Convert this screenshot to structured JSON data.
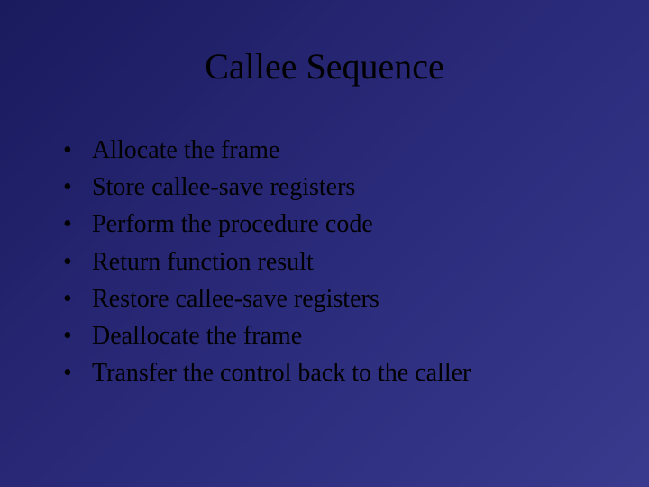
{
  "slide": {
    "title": "Callee Sequence",
    "bullets": [
      "Allocate the frame",
      "Store callee-save registers",
      "Perform the procedure code",
      "Return function result",
      "Restore callee-save registers",
      "Deallocate the frame",
      "Transfer the control back to the caller"
    ],
    "background_gradient_start": "#1a1a5e",
    "background_gradient_mid": "#2a2a7a",
    "background_gradient_end": "#3a3a8e",
    "text_color": "#000000",
    "title_fontsize": 40,
    "bullet_fontsize": 28,
    "font_family": "Times New Roman"
  }
}
